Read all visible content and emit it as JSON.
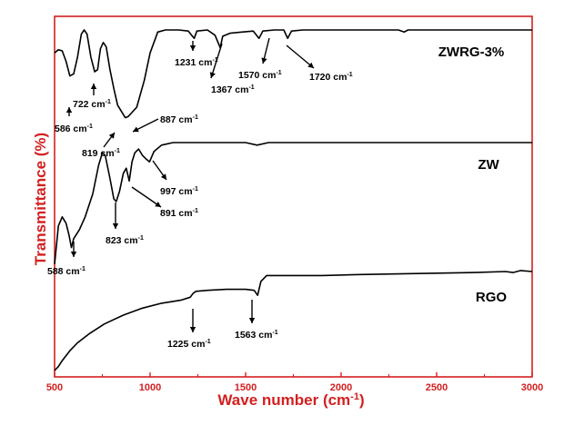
{
  "chart_data": {
    "type": "line",
    "xlabel": "Wave number (cm",
    "xlabel_sup": "-1",
    "xlabel_tail": ")",
    "ylabel": "Transmittance (%)",
    "xlim": [
      500,
      3000
    ],
    "x_ticks": [
      "500",
      "1000",
      "1500",
      "2000",
      "2500",
      "3000"
    ],
    "grid": false,
    "colors": {
      "axis": "#d42020",
      "line": "#000000"
    },
    "series": [
      {
        "name": "ZWRG-3%",
        "points": [
          [
            500,
            0.78
          ],
          [
            520,
            0.81
          ],
          [
            540,
            0.8
          ],
          [
            560,
            0.7
          ],
          [
            580,
            0.56
          ],
          [
            600,
            0.58
          ],
          [
            620,
            0.74
          ],
          [
            640,
            0.96
          ],
          [
            655,
            1.0
          ],
          [
            670,
            0.96
          ],
          [
            690,
            0.74
          ],
          [
            710,
            0.6
          ],
          [
            725,
            0.62
          ],
          [
            740,
            0.82
          ],
          [
            755,
            0.88
          ],
          [
            770,
            0.84
          ],
          [
            790,
            0.62
          ],
          [
            810,
            0.44
          ],
          [
            830,
            0.28
          ],
          [
            850,
            0.22
          ],
          [
            870,
            0.16
          ],
          [
            885,
            0.17
          ],
          [
            900,
            0.2
          ],
          [
            930,
            0.26
          ],
          [
            970,
            0.52
          ],
          [
            1000,
            0.78
          ],
          [
            1040,
            0.98
          ],
          [
            1080,
            1.0
          ],
          [
            1150,
            1.0
          ],
          [
            1200,
            0.99
          ],
          [
            1231,
            0.92
          ],
          [
            1245,
            0.99
          ],
          [
            1300,
            1.0
          ],
          [
            1340,
            0.95
          ],
          [
            1367,
            0.83
          ],
          [
            1380,
            0.94
          ],
          [
            1420,
            0.97
          ],
          [
            1480,
            0.98
          ],
          [
            1540,
            0.99
          ],
          [
            1570,
            0.92
          ],
          [
            1590,
            0.99
          ],
          [
            1650,
            1.0
          ],
          [
            1700,
            1.0
          ],
          [
            1720,
            0.92
          ],
          [
            1740,
            0.99
          ],
          [
            1800,
            1.0
          ],
          [
            2000,
            1.0
          ],
          [
            2300,
            1.0
          ],
          [
            2330,
            0.98
          ],
          [
            2350,
            1.0
          ],
          [
            2700,
            1.0
          ],
          [
            3000,
            1.0
          ]
        ],
        "labels": [
          {
            "x": 586,
            "text": "586 cm",
            "sup": "-1"
          },
          {
            "x": 722,
            "text": "722 cm",
            "sup": "-1"
          },
          {
            "x": 819,
            "text": "819 cm",
            "sup": "-1"
          },
          {
            "x": 887,
            "text": "887 cm",
            "sup": "-1"
          },
          {
            "x": 1231,
            "text": "1231 cm",
            "sup": "-1"
          },
          {
            "x": 1367,
            "text": "1367 cm",
            "sup": "-1"
          },
          {
            "x": 1570,
            "text": "1570 cm",
            "sup": "-1"
          },
          {
            "x": 1720,
            "text": "1720 cm",
            "sup": "-1"
          }
        ]
      },
      {
        "name": "ZW",
        "points": [
          [
            500,
            0.05
          ],
          [
            520,
            0.35
          ],
          [
            540,
            0.42
          ],
          [
            560,
            0.37
          ],
          [
            575,
            0.28
          ],
          [
            588,
            0.18
          ],
          [
            600,
            0.25
          ],
          [
            630,
            0.32
          ],
          [
            660,
            0.42
          ],
          [
            700,
            0.6
          ],
          [
            730,
            0.82
          ],
          [
            750,
            0.92
          ],
          [
            765,
            0.9
          ],
          [
            790,
            0.72
          ],
          [
            810,
            0.56
          ],
          [
            823,
            0.54
          ],
          [
            840,
            0.62
          ],
          [
            860,
            0.76
          ],
          [
            875,
            0.8
          ],
          [
            891,
            0.7
          ],
          [
            905,
            0.85
          ],
          [
            920,
            0.92
          ],
          [
            940,
            0.95
          ],
          [
            960,
            0.9
          ],
          [
            980,
            0.87
          ],
          [
            997,
            0.85
          ],
          [
            1020,
            0.93
          ],
          [
            1060,
            0.98
          ],
          [
            1120,
            1.0
          ],
          [
            1300,
            1.0
          ],
          [
            1500,
            1.0
          ],
          [
            1560,
            0.98
          ],
          [
            1620,
            1.0
          ],
          [
            1800,
            1.0
          ],
          [
            2200,
            1.0
          ],
          [
            2600,
            1.0
          ],
          [
            3000,
            1.0
          ]
        ],
        "labels": [
          {
            "x": 588,
            "text": "588 cm",
            "sup": "-1"
          },
          {
            "x": 823,
            "text": "823 cm",
            "sup": "-1"
          },
          {
            "x": 891,
            "text": "891 cm",
            "sup": "-1"
          },
          {
            "x": 997,
            "text": "997 cm",
            "sup": "-1"
          }
        ]
      },
      {
        "name": "RGO",
        "points": [
          [
            500,
            0.0
          ],
          [
            520,
            0.04
          ],
          [
            540,
            0.1
          ],
          [
            580,
            0.2
          ],
          [
            620,
            0.28
          ],
          [
            680,
            0.37
          ],
          [
            760,
            0.47
          ],
          [
            860,
            0.56
          ],
          [
            960,
            0.63
          ],
          [
            1060,
            0.68
          ],
          [
            1160,
            0.71
          ],
          [
            1210,
            0.74
          ],
          [
            1225,
            0.78
          ],
          [
            1240,
            0.8
          ],
          [
            1300,
            0.81
          ],
          [
            1400,
            0.82
          ],
          [
            1500,
            0.82
          ],
          [
            1545,
            0.81
          ],
          [
            1563,
            0.76
          ],
          [
            1580,
            0.9
          ],
          [
            1610,
            0.96
          ],
          [
            1700,
            0.96
          ],
          [
            1900,
            0.96
          ],
          [
            2100,
            0.97
          ],
          [
            2400,
            0.98
          ],
          [
            2700,
            0.99
          ],
          [
            2860,
            1.0
          ],
          [
            2900,
            0.99
          ],
          [
            2940,
            1.01
          ],
          [
            3000,
            1.0
          ]
        ],
        "labels": [
          {
            "x": 1225,
            "text": "1225 cm",
            "sup": "-1"
          },
          {
            "x": 1563,
            "text": "1563 cm",
            "sup": "-1"
          }
        ]
      }
    ]
  }
}
